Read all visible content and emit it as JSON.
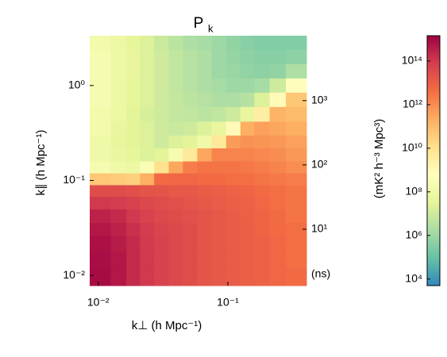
{
  "chart_data": {
    "type": "heatmap",
    "title": "P",
    "title_subscript": "k",
    "x_label": "k⊥ (h Mpc⁻¹)",
    "y_label": "k∥ (h Mpc⁻¹)",
    "y2_label": "(ns)",
    "colorbar_label": "(mK² h⁻³ Mpc³)",
    "log_x": true,
    "log_y": true,
    "xlim": [
      0.0086,
      0.404
    ],
    "ylim": [
      0.0078,
      3.35
    ],
    "y2lim": [
      1.33,
      10200
    ],
    "clim": [
      5000,
      1450000000000000.0
    ],
    "xticks": [
      {
        "value": 0.01,
        "label": "10⁻²"
      },
      {
        "value": 0.1,
        "label": "10⁻¹"
      }
    ],
    "yticks": [
      {
        "value": 0.01,
        "label": "10⁻²"
      },
      {
        "value": 0.1,
        "label": "10⁻¹"
      },
      {
        "value": 1,
        "label": "10⁰"
      }
    ],
    "y2ticks": [
      {
        "value": 10,
        "label": "10¹"
      },
      {
        "value": 100,
        "label": "10²"
      },
      {
        "value": 1000,
        "label": "10³"
      }
    ],
    "cticks": [
      {
        "value": 10000,
        "label": "10⁴"
      },
      {
        "value": 1000000,
        "label": "10⁶"
      },
      {
        "value": 100000000,
        "label": "10⁸"
      },
      {
        "value": 10000000000,
        "label": "10¹⁰"
      },
      {
        "value": 1000000000000,
        "label": "10¹²"
      },
      {
        "value": 100000000000000,
        "label": "10¹⁴"
      }
    ],
    "colormap": [
      "#3288bd",
      "#66c2a5",
      "#abdda4",
      "#e6f598",
      "#ffffbf",
      "#fee08b",
      "#fdae61",
      "#f46d43",
      "#d53e4f",
      "#9e0142"
    ],
    "x_bins": [
      0.0086,
      0.0125,
      0.0165,
      0.021,
      0.027,
      0.035,
      0.045,
      0.058,
      0.075,
      0.097,
      0.125,
      0.16,
      0.21,
      0.28,
      0.404
    ],
    "y_bins": [
      0.0078,
      0.012,
      0.018,
      0.026,
      0.036,
      0.05,
      0.068,
      0.09,
      0.12,
      0.16,
      0.22,
      0.3,
      0.42,
      0.6,
      0.85,
      1.2,
      1.7,
      2.4,
      3.35
    ],
    "values": [
      [
        900000000000000.0,
        500000000000000.0,
        200000000000000.0,
        100000000000000.0,
        60000000000000.0,
        40000000000000.0,
        30000000000000.0,
        20000000000000.0,
        15000000000000.0,
        12000000000000.0,
        10000000000000.0,
        8000000000000.0,
        6000000000000.0,
        5000000000000.0
      ],
      [
        800000000000000.0,
        500000000000000.0,
        200000000000000.0,
        100000000000000.0,
        60000000000000.0,
        40000000000000.0,
        30000000000000.0,
        20000000000000.0,
        15000000000000.0,
        12000000000000.0,
        10000000000000.0,
        8000000000000.0,
        6000000000000.0,
        4000000000000.0
      ],
      [
        700000000000000.0,
        400000000000000.0,
        200000000000000.0,
        90000000000000.0,
        60000000000000.0,
        40000000000000.0,
        30000000000000.0,
        20000000000000.0,
        15000000000000.0,
        12000000000000.0,
        10000000000000.0,
        8000000000000.0,
        6000000000000.0,
        4000000000000.0
      ],
      [
        500000000000000.0,
        300000000000000.0,
        150000000000000.0,
        80000000000000.0,
        50000000000000.0,
        40000000000000.0,
        30000000000000.0,
        20000000000000.0,
        15000000000000.0,
        12000000000000.0,
        10000000000000.0,
        7000000000000.0,
        5000000000000.0,
        4000000000000.0
      ],
      [
        300000000000000.0,
        200000000000000.0,
        100000000000000.0,
        60000000000000.0,
        40000000000000.0,
        30000000000000.0,
        25000000000000.0,
        20000000000000.0,
        15000000000000.0,
        12000000000000.0,
        9000000000000.0,
        7000000000000.0,
        5000000000000.0,
        3000000000000.0
      ],
      [
        100000000000000.0,
        80000000000000.0,
        60000000000000.0,
        40000000000000.0,
        30000000000000.0,
        25000000000000.0,
        20000000000000.0,
        15000000000000.0,
        12000000000000.0,
        10000000000000.0,
        8000000000000.0,
        6000000000000.0,
        4000000000000.0,
        3000000000000.0
      ],
      [
        30000000000000.0,
        30000000000000.0,
        25000000000000.0,
        20000000000000.0,
        20000000000000.0,
        15000000000000.0,
        15000000000000.0,
        12000000000000.0,
        10000000000000.0,
        8000000000000.0,
        7000000000000.0,
        5000000000000.0,
        4000000000000.0,
        3000000000000.0
      ],
      [
        50000000000.0,
        40000000000.0,
        30000000000.0,
        200000000000.0,
        5000000000000.0,
        6000000000000.0,
        6000000000000.0,
        5000000000000.0,
        5000000000000.0,
        4000000000000.0,
        4000000000000.0,
        3000000000000.0,
        2500000000000.0,
        2000000000000.0
      ],
      [
        200000000.0,
        100000000.0,
        80000000.0,
        300000000.0,
        10000000000.0,
        300000000000.0,
        2000000000000.0,
        3000000000000.0,
        3000000000000.0,
        3000000000000.0,
        2500000000000.0,
        2000000000000.0,
        1500000000000.0,
        1000000000000.0
      ],
      [
        100000000.0,
        60000000.0,
        40000000.0,
        20000000.0,
        30000000.0,
        200000000.0,
        5000000000.0,
        300000000000.0,
        1500000000000.0,
        1500000000000.0,
        1500000000000.0,
        1200000000000.0,
        1000000000000.0,
        600000000000.0
      ],
      [
        100000000.0,
        50000000.0,
        30000000.0,
        20000000.0,
        10000000.0,
        20000000.0,
        30000000.0,
        100000000.0,
        5000000000.0,
        500000000000.0,
        800000000000.0,
        700000000000.0,
        600000000000.0,
        400000000000.0
      ],
      [
        150000000.0,
        60000000.0,
        30000000.0,
        20000000.0,
        10000000.0,
        8000000.0,
        10000000.0,
        20000000.0,
        50000000.0,
        1000000000.0,
        200000000000.0,
        400000000000.0,
        300000000000.0,
        200000000000.0
      ],
      [
        150000000.0,
        70000000.0,
        30000000.0,
        15000000.0,
        10000000.0,
        6000000.0,
        5000000.0,
        4000000.0,
        5000000.0,
        10000000.0,
        50000000.0,
        3000000000.0,
        150000000000.0,
        100000000000.0
      ],
      [
        200000000.0,
        80000000.0,
        40000000.0,
        20000000.0,
        10000000.0,
        6000000.0,
        4000000.0,
        3000000.0,
        2000000.0,
        2000000.0,
        3000000.0,
        20000000.0,
        1000000000.0,
        50000000000.0
      ],
      [
        200000000.0,
        80000000.0,
        40000000.0,
        20000000.0,
        10000000.0,
        5000000.0,
        3000000.0,
        2000000.0,
        1500000.0,
        1000000.0,
        1000000.0,
        1500000.0,
        10000000.0,
        500000000.0
      ],
      [
        200000000.0,
        90000000.0,
        50000000.0,
        20000000.0,
        10000000.0,
        5000000.0,
        3000000.0,
        2000000.0,
        1000000.0,
        800000.0,
        600000.0,
        500000.0,
        600000.0,
        2000000.0
      ],
      [
        200000000.0,
        90000000.0,
        50000000.0,
        20000000.0,
        10000000.0,
        5000000.0,
        3000000.0,
        2000000.0,
        1000000.0,
        700000.0,
        500000.0,
        400000.0,
        400000.0,
        500000.0
      ],
      [
        150000000.0,
        80000000.0,
        40000000.0,
        20000000.0,
        8000000.0,
        4000000.0,
        2000000.0,
        1500000.0,
        1000000.0,
        600000.0,
        400000.0,
        300000.0,
        300000.0,
        300000.0
      ]
    ]
  }
}
